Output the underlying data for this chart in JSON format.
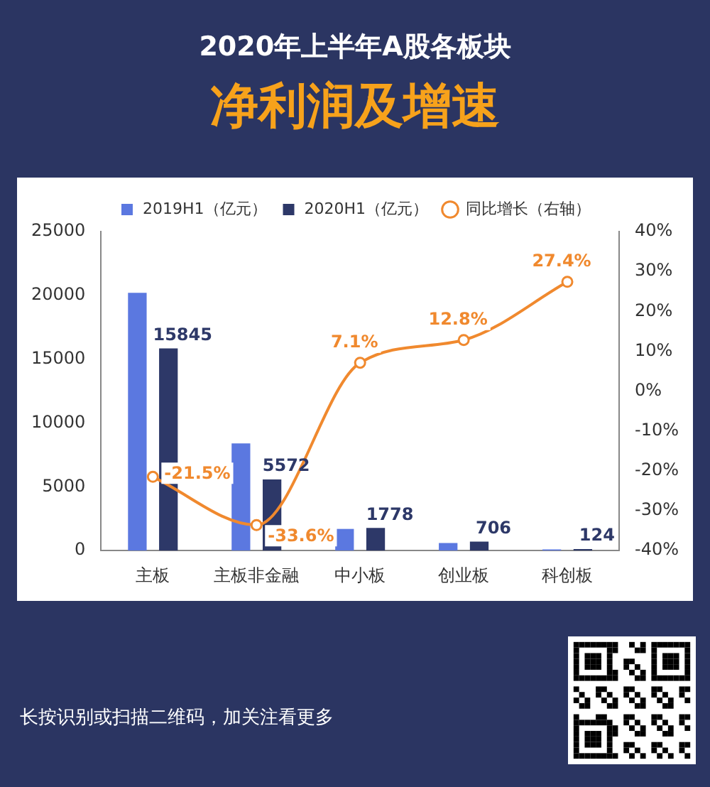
{
  "chart_data": {
    "type": "bar",
    "title": "2020年上半年A股各板块",
    "subtitle": "净利润及增速",
    "categories": [
      "主板",
      "主板非金融",
      "中小板",
      "创业板",
      "科创板"
    ],
    "series": [
      {
        "name": "2019H1（亿元）",
        "color": "#5b78e0",
        "values": [
          20200,
          8400,
          1700,
          600,
          100
        ]
      },
      {
        "name": "2020H1（亿元）",
        "color": "#2d3868",
        "values": [
          15845,
          5572,
          1778,
          706,
          124
        ],
        "value_labels": [
          "15845",
          "5572",
          "1778",
          "706",
          "124"
        ]
      },
      {
        "name": "同比增长（右轴）",
        "type": "line",
        "axis": "y2",
        "color": "#f0892e",
        "marker": "circle",
        "values": [
          -21.5,
          -33.6,
          7.1,
          12.8,
          27.4
        ],
        "value_labels": [
          "-21.5%",
          "-33.6%",
          "7.1%",
          "12.8%",
          "27.4%"
        ]
      }
    ],
    "ylim": [
      0,
      25000
    ],
    "yticks": [
      0,
      5000,
      10000,
      15000,
      20000,
      25000
    ],
    "y2lim": [
      -40,
      40
    ],
    "y2ticks": [
      {
        "value": -40,
        "label": "-40%"
      },
      {
        "value": -30,
        "label": "-30%"
      },
      {
        "value": -20,
        "label": "-20%"
      },
      {
        "value": -10,
        "label": "-10%"
      },
      {
        "value": 0,
        "label": "0%"
      },
      {
        "value": 10,
        "label": "10%"
      },
      {
        "value": 20,
        "label": "20%"
      },
      {
        "value": 30,
        "label": "30%"
      },
      {
        "value": 40,
        "label": "40%"
      }
    ],
    "grid": false,
    "legend": "top",
    "annotations": [
      "长按识别或扫描二维码，加关注看更多"
    ]
  }
}
